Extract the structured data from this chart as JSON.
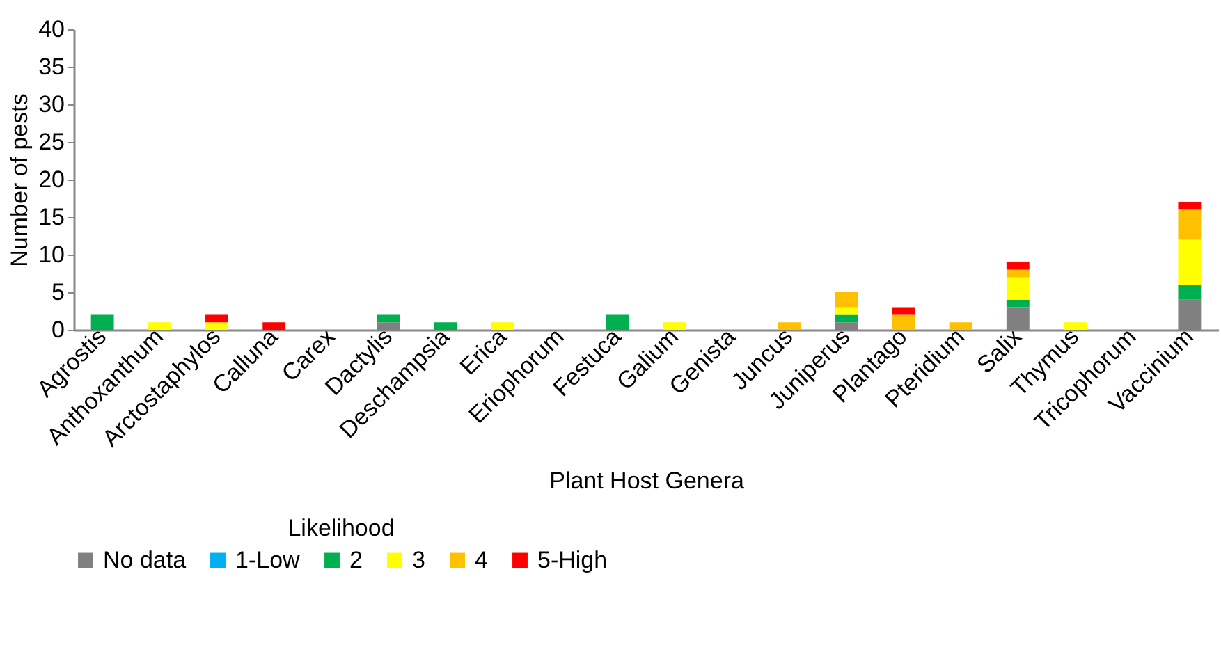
{
  "chart_data": {
    "type": "bar",
    "stacked": true,
    "xlabel": "Plant Host Genera",
    "ylabel": "Number of pests",
    "legend_title": "Likelihood",
    "legend": "bottom",
    "grid": false,
    "categories": [
      "Agrostis",
      "Anthoxanthum",
      "Arctostaphylos",
      "Calluna",
      "Carex",
      "Dactylis",
      "Deschampsia",
      "Erica",
      "Eriophorum",
      "Festuca",
      "Galium",
      "Genista",
      "Juncus",
      "Juniperus",
      "Plantago",
      "Pteridium",
      "Salix",
      "Thymus",
      "Tricophorum",
      "Vaccinium"
    ],
    "ylim": [
      0,
      40
    ],
    "yticks": [
      0,
      5,
      10,
      15,
      20,
      25,
      30,
      35,
      40
    ],
    "series": [
      {
        "name": "No data",
        "color": "#808080",
        "values": [
          0,
          0,
          0,
          0,
          0,
          1,
          0,
          0,
          0,
          0,
          0,
          0,
          0,
          1,
          0,
          0,
          3,
          0,
          0,
          4
        ]
      },
      {
        "name": "1-Low",
        "color": "#00b0f0",
        "values": [
          0,
          0,
          0,
          0,
          0,
          0,
          0,
          0,
          0,
          0,
          0,
          0,
          0,
          0,
          0,
          0,
          0,
          0,
          0,
          0
        ]
      },
      {
        "name": "2",
        "color": "#00b050",
        "values": [
          2,
          0,
          0,
          0,
          0,
          1,
          1,
          0,
          0,
          2,
          0,
          0,
          0,
          1,
          0,
          0,
          1,
          0,
          0,
          2
        ]
      },
      {
        "name": "3",
        "color": "#ffff00",
        "values": [
          0,
          1,
          1,
          0,
          0,
          0,
          0,
          1,
          0,
          0,
          1,
          0,
          0,
          1,
          0,
          0,
          3,
          1,
          0,
          6
        ]
      },
      {
        "name": "4",
        "color": "#ffc000",
        "values": [
          0,
          0,
          0,
          0,
          0,
          0,
          0,
          0,
          0,
          0,
          0,
          0,
          1,
          2,
          2,
          1,
          1,
          0,
          0,
          4
        ]
      },
      {
        "name": "5-High",
        "color": "#ff0000",
        "values": [
          0,
          0,
          1,
          1,
          0,
          0,
          0,
          0,
          0,
          0,
          0,
          0,
          0,
          0,
          1,
          0,
          1,
          0,
          0,
          1
        ]
      }
    ]
  }
}
